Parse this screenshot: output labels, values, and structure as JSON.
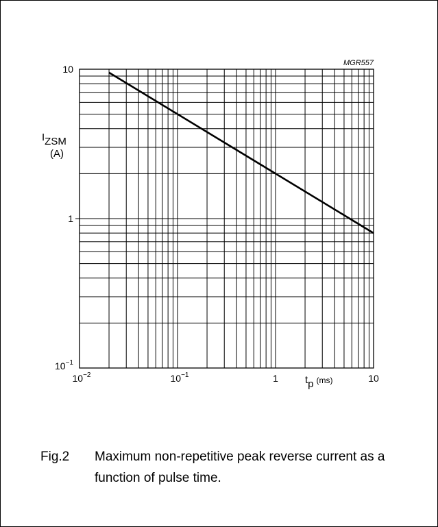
{
  "chart_data": {
    "type": "line",
    "code": "MGR557",
    "x_scale": "log",
    "y_scale": "log",
    "xlim": [
      0.01,
      10
    ],
    "ylim": [
      0.1,
      10
    ],
    "grid": true,
    "x_ticks": [
      {
        "value": 0.01,
        "base": "10",
        "exp": "−2"
      },
      {
        "value": 0.1,
        "base": "10",
        "exp": "−1"
      },
      {
        "value": 1,
        "base": "1",
        "exp": ""
      },
      {
        "value": 10,
        "base": "10",
        "exp": ""
      }
    ],
    "y_ticks": [
      {
        "value": 0.1,
        "base": "10",
        "exp": "−1"
      },
      {
        "value": 1,
        "base": "1",
        "exp": ""
      },
      {
        "value": 10,
        "base": "10",
        "exp": ""
      }
    ],
    "xlabel": {
      "main": "t",
      "sub": "p",
      "unit": "(ms)"
    },
    "ylabel": {
      "main": "I",
      "sub": "ZSM",
      "unit": "(A)"
    },
    "series": [
      {
        "x": [
          0.02,
          10
        ],
        "y": [
          9.5,
          0.8
        ]
      }
    ]
  },
  "caption": {
    "figure": "Fig.2",
    "text": "Maximum non-repetitive peak reverse current as a function of pulse time."
  }
}
